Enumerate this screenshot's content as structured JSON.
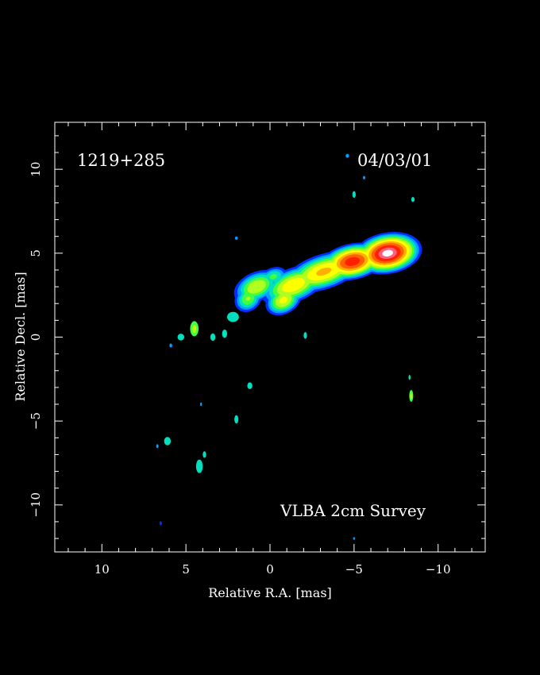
{
  "chart_data": {
    "type": "heatmap",
    "source_label": "1219+285",
    "date_label": "04/03/01",
    "survey_label": "VLBA 2cm Survey",
    "xlabel": "Relative R.A. [mas]",
    "ylabel": "Relative Decl. [mas]",
    "xlim": [
      12.8,
      -12.8
    ],
    "ylim": [
      -12.8,
      12.8
    ],
    "x_ticks": [
      10,
      5,
      0,
      -5,
      -10
    ],
    "x_tick_labels": [
      "10",
      "5",
      "0",
      "−5",
      "−10"
    ],
    "y_ticks": [
      10,
      5,
      0,
      -5,
      -10
    ],
    "y_tick_labels": [
      "10",
      "5",
      "0",
      "−5",
      "−10"
    ],
    "colormap": [
      "#0030ff",
      "#00a0ff",
      "#00e0c0",
      "#40ff40",
      "#b0ff20",
      "#ffff00",
      "#ffb000",
      "#ff6000",
      "#ff2000",
      "#ff6080",
      "#ffffff"
    ],
    "jet_components": [
      {
        "x": -7.0,
        "y": 5.0,
        "sx": 1.0,
        "sy": 0.6,
        "angle": 10,
        "peak": 1.0
      },
      {
        "x": -4.9,
        "y": 4.5,
        "sx": 1.0,
        "sy": 0.55,
        "angle": 12,
        "peak": 0.82
      },
      {
        "x": -3.2,
        "y": 3.9,
        "sx": 1.4,
        "sy": 0.6,
        "angle": 18,
        "peak": 0.55
      },
      {
        "x": -1.4,
        "y": 3.1,
        "sx": 1.2,
        "sy": 0.6,
        "angle": 22,
        "peak": 0.5
      },
      {
        "x": -0.8,
        "y": 2.2,
        "sx": 0.7,
        "sy": 0.5,
        "angle": 30,
        "peak": 0.45
      },
      {
        "x": 0.8,
        "y": 3.0,
        "sx": 0.9,
        "sy": 0.55,
        "angle": 25,
        "peak": 0.42
      },
      {
        "x": 1.3,
        "y": 2.3,
        "sx": 0.6,
        "sy": 0.5,
        "angle": 45,
        "peak": 0.35
      },
      {
        "x": -0.2,
        "y": 3.6,
        "sx": 0.6,
        "sy": 0.4,
        "angle": 20,
        "peak": 0.3
      }
    ],
    "noise_blobs": [
      {
        "x": 4.5,
        "y": 0.5,
        "sx": 0.25,
        "sy": 0.45,
        "level": 3
      },
      {
        "x": 5.3,
        "y": 0.0,
        "sx": 0.2,
        "sy": 0.2,
        "level": 2
      },
      {
        "x": 5.9,
        "y": -0.5,
        "sx": 0.08,
        "sy": 0.12,
        "level": 1
      },
      {
        "x": 3.4,
        "y": 0.0,
        "sx": 0.15,
        "sy": 0.22,
        "level": 2
      },
      {
        "x": 2.7,
        "y": 0.2,
        "sx": 0.15,
        "sy": 0.25,
        "level": 2
      },
      {
        "x": 2.2,
        "y": 1.2,
        "sx": 0.35,
        "sy": 0.3,
        "level": 2
      },
      {
        "x": 1.8,
        "y": 2.6,
        "sx": 0.12,
        "sy": 0.2,
        "level": 1
      },
      {
        "x": 2.0,
        "y": 5.9,
        "sx": 0.08,
        "sy": 0.1,
        "level": 1
      },
      {
        "x": -2.1,
        "y": 0.1,
        "sx": 0.1,
        "sy": 0.2,
        "level": 2
      },
      {
        "x": 1.2,
        "y": -2.9,
        "sx": 0.15,
        "sy": 0.2,
        "level": 2
      },
      {
        "x": 2.0,
        "y": -4.9,
        "sx": 0.12,
        "sy": 0.25,
        "level": 2
      },
      {
        "x": 4.1,
        "y": -4.0,
        "sx": 0.05,
        "sy": 0.1,
        "level": 1
      },
      {
        "x": 6.1,
        "y": -6.2,
        "sx": 0.2,
        "sy": 0.25,
        "level": 2
      },
      {
        "x": 6.7,
        "y": -6.5,
        "sx": 0.07,
        "sy": 0.12,
        "level": 1
      },
      {
        "x": 4.2,
        "y": -7.7,
        "sx": 0.2,
        "sy": 0.4,
        "level": 2
      },
      {
        "x": 3.9,
        "y": -7.0,
        "sx": 0.1,
        "sy": 0.2,
        "level": 2
      },
      {
        "x": 6.5,
        "y": -11.1,
        "sx": 0.07,
        "sy": 0.12,
        "level": 0
      },
      {
        "x": -4.6,
        "y": 10.8,
        "sx": 0.1,
        "sy": 0.12,
        "level": 1
      },
      {
        "x": -5.6,
        "y": 9.5,
        "sx": 0.07,
        "sy": 0.1,
        "level": 1
      },
      {
        "x": -5.0,
        "y": 8.5,
        "sx": 0.1,
        "sy": 0.2,
        "level": 2
      },
      {
        "x": -8.5,
        "y": 8.2,
        "sx": 0.1,
        "sy": 0.15,
        "level": 2
      },
      {
        "x": -8.3,
        "y": -2.4,
        "sx": 0.06,
        "sy": 0.15,
        "level": 2
      },
      {
        "x": -8.4,
        "y": -3.5,
        "sx": 0.12,
        "sy": 0.35,
        "level": 3
      },
      {
        "x": -5.0,
        "y": -12.0,
        "sx": 0.05,
        "sy": 0.08,
        "level": 1
      }
    ]
  }
}
